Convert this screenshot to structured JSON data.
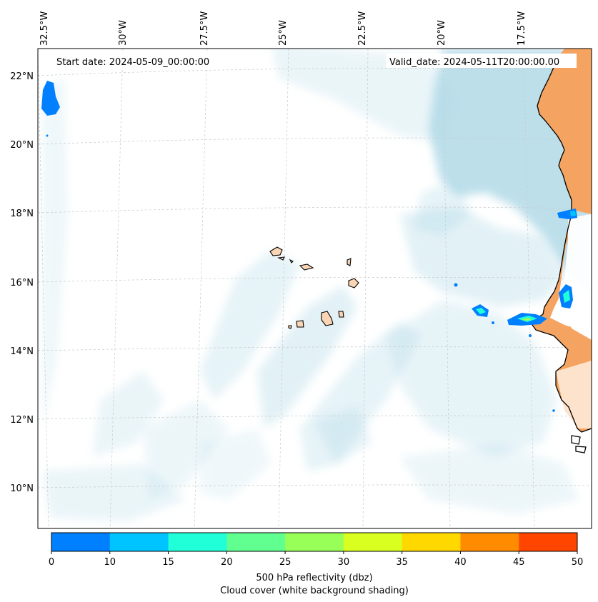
{
  "map": {
    "start_date": "Start date: 2024-05-09_00:00:00",
    "valid_date": "Valid_date: 2024-05-11T20:00:00.00",
    "lon_labels": [
      "32.5°W",
      "30°W",
      "27.5°W",
      "25°W",
      "22.5°W",
      "20°W",
      "17.5°W"
    ],
    "lat_labels": [
      "22°N",
      "20°N",
      "18°N",
      "16°N",
      "14°N",
      "12°N",
      "10°N"
    ],
    "gridlines": true,
    "land_color": "#f4a460",
    "cloud_color": "#add8e6",
    "coastline_color": "#000000"
  },
  "colorbar": {
    "bounds": [
      "0",
      "10",
      "15",
      "20",
      "25",
      "30",
      "35",
      "40",
      "45",
      "50"
    ],
    "colors": [
      "#0080ff",
      "#00c4ff",
      "#20ffd8",
      "#60ff90",
      "#98ff58",
      "#d8ff20",
      "#ffd800",
      "#ff8c00",
      "#ff4500"
    ],
    "label_line1": "500 hPa reflectivity (dbz)",
    "label_line2": "Cloud cover (white background shading)"
  }
}
